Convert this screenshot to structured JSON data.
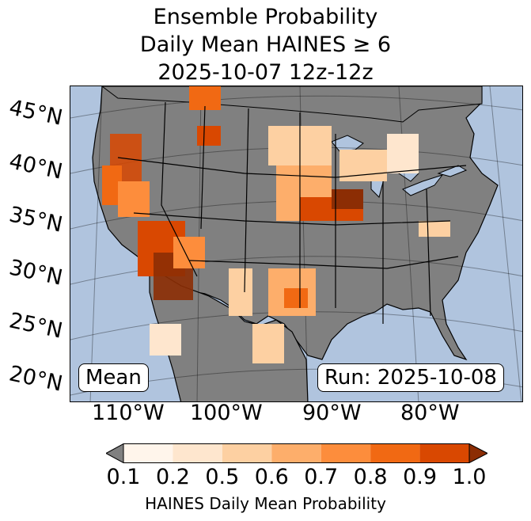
{
  "title": {
    "line1": "Ensemble Probability",
    "line2": "Daily Mean HAINES ≥ 6",
    "line3": "2025-10-07 12z-12z"
  },
  "labels": {
    "mean": "Mean",
    "run": "Run: 2025-10-08"
  },
  "lat_ticks": [
    "45°N",
    "40°N",
    "35°N",
    "30°N",
    "25°N",
    "20°N"
  ],
  "lon_ticks": [
    "110°W",
    "100°W",
    "90°W",
    "80°W"
  ],
  "colorbar": {
    "label": "HAINES Daily Mean Probability",
    "ticks": [
      "0.1",
      "0.2",
      "0.5",
      "0.6",
      "0.7",
      "0.8",
      "0.9",
      "1.0"
    ],
    "colors": [
      "#fff5eb",
      "#fee6ce",
      "#fdd0a2",
      "#fdae6b",
      "#fd8d3c",
      "#f16913",
      "#d94801"
    ],
    "under_color": "#808080",
    "over_color": "#8c2d04"
  },
  "colors": {
    "ocean": "#b0c4de",
    "land": "#808080",
    "lakes": "#b0c4de"
  }
}
